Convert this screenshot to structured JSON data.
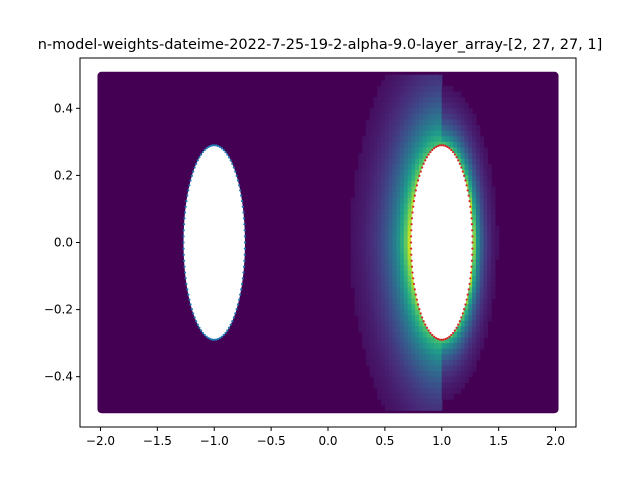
{
  "chart_data": {
    "type": "heatmap",
    "title": "n-model-weights-dateime-2022-7-25-19-2-alpha-9.0-layer_array-[2, 27, 27, 1]",
    "xlabel": "",
    "ylabel": "",
    "xlim": [
      -2.18,
      2.18
    ],
    "ylim": [
      -0.55,
      0.55
    ],
    "x_ticks": [
      -2.0,
      -1.5,
      -1.0,
      -0.5,
      0.0,
      0.5,
      1.0,
      1.5,
      2.0
    ],
    "x_tick_labels": [
      "−2.0",
      "−1.5",
      "−1.0",
      "−0.5",
      "0.0",
      "0.5",
      "1.0",
      "1.5",
      "2.0"
    ],
    "y_ticks": [
      -0.4,
      -0.2,
      0.0,
      0.2,
      0.4
    ],
    "y_tick_labels": [
      "−0.4",
      "−0.2",
      "0.0",
      "0.2",
      "0.4"
    ],
    "colormap": "viridis",
    "background_color": "#440154",
    "domain": {
      "x": [
        -2.0,
        2.0
      ],
      "y": [
        -0.5,
        0.5
      ]
    },
    "holes": [
      {
        "name": "left-ellipse",
        "center": [
          -1.0,
          0.0
        ],
        "rx": 0.27,
        "ry": 0.29,
        "boundary_color": "#1f77b4"
      },
      {
        "name": "right-ellipse",
        "center": [
          1.0,
          0.0
        ],
        "rx": 0.27,
        "ry": 0.29,
        "boundary_color": "#d62728"
      }
    ],
    "field": {
      "peak_center": [
        1.0,
        0.0
      ],
      "peak_value": 1.0,
      "glow_side": "left"
    },
    "grid": false,
    "legend": "none"
  }
}
